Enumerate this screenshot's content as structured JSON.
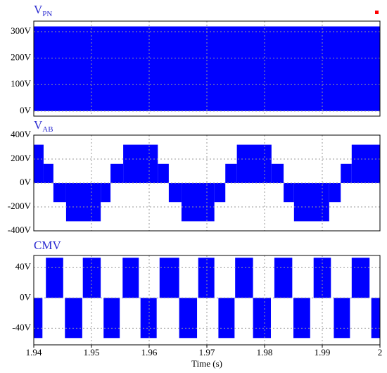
{
  "chart_data": [
    {
      "type": "step",
      "title": "V",
      "title_sub": "PN",
      "color": "#0000ff",
      "x": [
        1.94
      ],
      "values": [
        320
      ],
      "xlim": [
        1.94,
        2
      ],
      "xticks": [
        1.94,
        1.95,
        1.96,
        1.97,
        1.98,
        1.99,
        2
      ],
      "ylim": [
        -19,
        340
      ],
      "yticks": [
        {
          "value": 0,
          "label": "0V"
        },
        {
          "value": 100,
          "label": "100V"
        },
        {
          "value": 200,
          "label": "200V"
        },
        {
          "value": 300,
          "label": "300V"
        }
      ],
      "grid": true
    },
    {
      "type": "step",
      "title": "V",
      "title_sub": "AB",
      "color": "#0000ff",
      "x": [
        1.94,
        1.9417,
        1.9434,
        1.9456,
        1.9516,
        1.9533,
        1.9555,
        1.9615,
        1.9634,
        1.9656,
        1.9713,
        1.9732,
        1.9752,
        1.9812,
        1.9833,
        1.9851,
        1.9912,
        1.9932,
        1.9951
      ],
      "values": [
        320,
        160,
        -160,
        -320,
        -160,
        160,
        320,
        160,
        -160,
        -320,
        -160,
        160,
        320,
        160,
        -160,
        -320,
        -160,
        160,
        320
      ],
      "xlim": [
        1.94,
        2
      ],
      "xticks": [
        1.94,
        1.95,
        1.96,
        1.97,
        1.98,
        1.99,
        2
      ],
      "ylim": [
        -400,
        400
      ],
      "yticks": [
        {
          "value": -400,
          "label": "-400V"
        },
        {
          "value": -200,
          "label": "-200V"
        },
        {
          "value": 0,
          "label": "0V"
        },
        {
          "value": 200,
          "label": "200V"
        },
        {
          "value": 400,
          "label": "400V"
        }
      ],
      "grid": true
    },
    {
      "type": "step",
      "title": "CMV",
      "color": "#0000ff",
      "xlabel": "Time (s)",
      "x": [
        1.94,
        1.9415,
        1.9421,
        1.9451,
        1.9454,
        1.9484,
        1.9485,
        1.9516,
        1.9521,
        1.9549,
        1.9554,
        1.9582,
        1.9585,
        1.9613,
        1.9618,
        1.9652,
        1.9683,
        1.9685,
        1.9713,
        1.972,
        1.9748,
        1.9749,
        1.978,
        1.9811,
        1.9817,
        1.9848,
        1.985,
        1.9879,
        1.9885,
        1.9915,
        1.992,
        1.9948,
        1.9951,
        1.9982,
        1.9985
      ],
      "values": [
        -53,
        0,
        53,
        0,
        -53,
        0,
        53,
        0,
        -53,
        0,
        53,
        0,
        -53,
        0,
        53,
        -53,
        0,
        53,
        0,
        -53,
        0,
        53,
        -53,
        0,
        53,
        0,
        -53,
        0,
        53,
        0,
        -53,
        0,
        53,
        0,
        -53
      ],
      "xlim": [
        1.94,
        2
      ],
      "xticks": [
        1.94,
        1.95,
        1.96,
        1.97,
        1.98,
        1.99,
        2
      ],
      "ylim": [
        -62,
        56
      ],
      "yticks": [
        {
          "value": -40,
          "label": "-40V"
        },
        {
          "value": 0,
          "label": "0V"
        },
        {
          "value": 40,
          "label": "40V"
        }
      ],
      "grid": true
    }
  ]
}
